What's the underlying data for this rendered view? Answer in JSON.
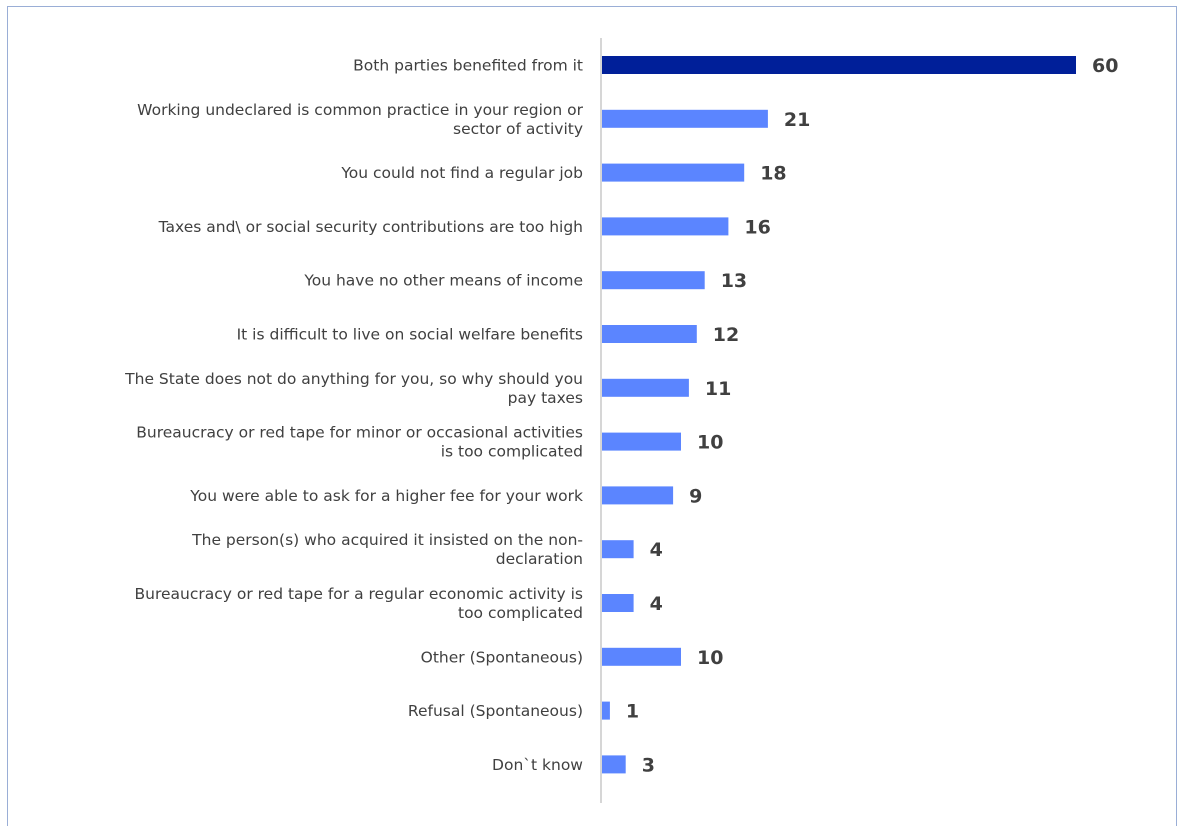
{
  "chart_data": {
    "type": "bar",
    "orientation": "horizontal",
    "categories": [
      [
        "Both parties benefited from it"
      ],
      [
        "Working undeclared is common practice in your region or",
        "sector of activity"
      ],
      [
        "You could not find a regular job"
      ],
      [
        "Taxes and\\ or social security contributions are too high"
      ],
      [
        "You have no other means of income"
      ],
      [
        "It is difficult to live on social welfare benefits"
      ],
      [
        "The State does not do anything for you, so why should you",
        "pay taxes"
      ],
      [
        "Bureaucracy or red tape for minor or occasional activities",
        "is too complicated"
      ],
      [
        "You were able to ask for a higher fee for your work"
      ],
      [
        "The person(s) who acquired it insisted on the non-",
        "declaration"
      ],
      [
        "Bureaucracy or red tape for a regular economic activity is",
        "too complicated"
      ],
      [
        "Other (Spontaneous)"
      ],
      [
        "Refusal (Spontaneous)"
      ],
      [
        "Don`t know"
      ]
    ],
    "values": [
      60,
      21,
      18,
      16,
      13,
      12,
      11,
      10,
      9,
      4,
      4,
      10,
      1,
      3
    ],
    "value_labels": [
      "60",
      "21",
      "18",
      "16",
      "13",
      "12",
      "11",
      "10",
      "9",
      "4",
      "4",
      "10",
      "1",
      "3"
    ],
    "highlight_index": 0,
    "colors": {
      "highlight": "#001f99",
      "bar": "#5b85ff",
      "axis": "#c8c8c8",
      "label": "#404040",
      "frame": "#9aaed6"
    },
    "xlim": [
      0,
      60
    ],
    "grid": false,
    "legend": "none"
  }
}
